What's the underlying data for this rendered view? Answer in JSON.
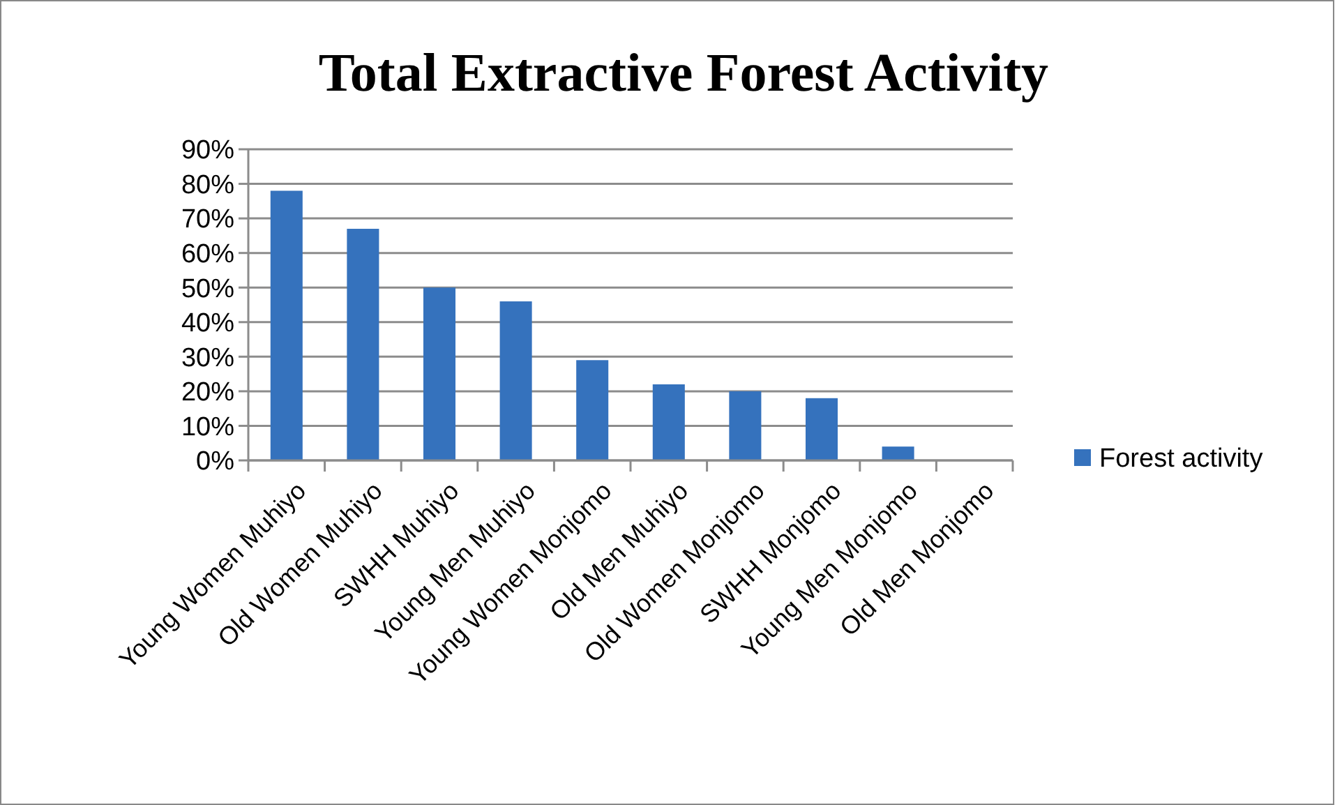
{
  "chart_data": {
    "type": "bar",
    "title": "Total Extractive Forest Activity",
    "categories": [
      "Young Women Muhiyo",
      "Old Women Muhiyo",
      "SWHH Muhiyo",
      "Young Men Muhiyo",
      "Young Women Monjomo",
      "Old Men Muhiyo",
      "Old Women Monjomo",
      "SWHH Monjomo",
      "Young Men Monjomo",
      "Old Men Monjomo"
    ],
    "series": [
      {
        "name": "Forest activity",
        "color": "#3572bd",
        "values": [
          78,
          67,
          50,
          46,
          29,
          22,
          20,
          18,
          4,
          0
        ]
      }
    ],
    "ylim": [
      0,
      90
    ],
    "yticks": [
      {
        "value": 0,
        "label": "0%"
      },
      {
        "value": 10,
        "label": "10%"
      },
      {
        "value": 20,
        "label": "20%"
      },
      {
        "value": 30,
        "label": "30%"
      },
      {
        "value": 40,
        "label": "40%"
      },
      {
        "value": 50,
        "label": "50%"
      },
      {
        "value": 60,
        "label": "60%"
      },
      {
        "value": 70,
        "label": "70%"
      },
      {
        "value": 80,
        "label": "80%"
      },
      {
        "value": 90,
        "label": "90%"
      }
    ],
    "grid": "y",
    "legend": "right"
  }
}
